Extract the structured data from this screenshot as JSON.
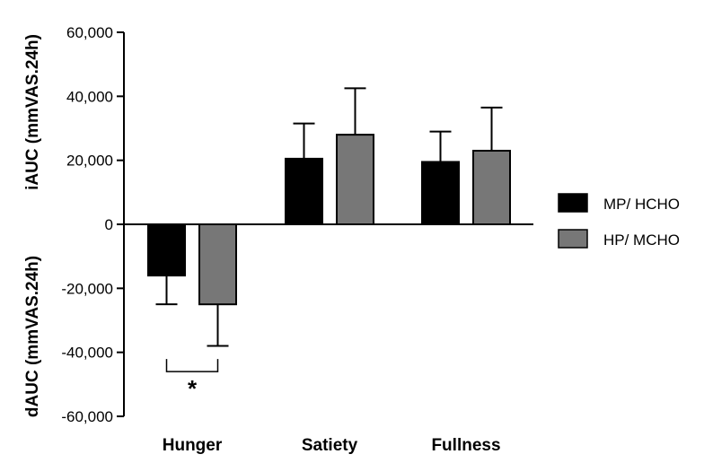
{
  "chart_data": {
    "type": "bar",
    "categories": [
      "Hunger",
      "Satiety",
      "Fullness"
    ],
    "series": [
      {
        "name": "MP/ HCHO",
        "color": "#000000",
        "values": [
          -16000,
          20500,
          19500
        ],
        "errors": [
          9000,
          11000,
          9500
        ]
      },
      {
        "name": "HP/ MCHO",
        "color": "#777777",
        "values": [
          -25000,
          28000,
          23000
        ],
        "errors": [
          13000,
          14500,
          13500
        ]
      }
    ],
    "ylabel_top": "iAUC (mmVAS.24h)",
    "ylabel_bottom": "dAUC (mmVAS.24h)",
    "ylim": [
      -60000,
      60000
    ],
    "yticks": [
      -60000,
      -40000,
      -20000,
      0,
      20000,
      40000,
      60000
    ],
    "ytick_labels": [
      "-60,000",
      "-40,000",
      "-20,000",
      "0",
      "20,000",
      "40,000",
      "60,000"
    ],
    "grid": false,
    "legend_position": "right",
    "annotations": [
      {
        "text": "*",
        "category": "Hunger",
        "bracket_y": -46000
      }
    ]
  }
}
